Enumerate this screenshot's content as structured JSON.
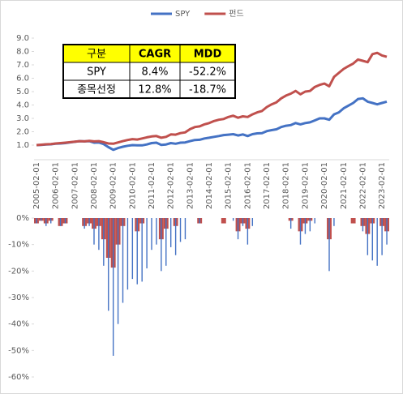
{
  "chart_data": [
    {
      "type": "line",
      "categories": [
        "2005-02-01",
        null,
        null,
        null,
        "2006-02-01",
        null,
        null,
        null,
        "2007-02-01",
        null,
        null,
        null,
        "2008-02-01",
        null,
        null,
        null,
        "2009-02-01",
        null,
        null,
        null,
        "2010-02-01",
        null,
        null,
        null,
        "2011-02-01",
        null,
        null,
        null,
        "2012-02-01",
        null,
        null,
        null,
        "2013-02-01",
        null,
        null,
        null,
        "2014-02-01",
        null,
        null,
        null,
        "2015-02-01",
        null,
        null,
        null,
        "2016-02-01",
        null,
        null,
        null,
        "2017-02-01",
        null,
        null,
        null,
        "2018-02-01",
        null,
        null,
        null,
        "2019-02-01",
        null,
        null,
        null,
        "2020-02-01",
        null,
        null,
        null,
        "2021-02-01",
        null,
        null,
        null,
        "2022-02-01",
        null,
        null,
        null,
        "2023-02-01",
        null
      ],
      "series": [
        {
          "name": "SPY",
          "color": "#4472c4",
          "values": [
            1.0,
            1.02,
            1.05,
            1.06,
            1.1,
            1.12,
            1.15,
            1.2,
            1.25,
            1.3,
            1.28,
            1.3,
            1.18,
            1.2,
            1.08,
            0.85,
            0.65,
            0.78,
            0.88,
            0.95,
            1.0,
            0.98,
            0.98,
            1.05,
            1.15,
            1.18,
            1.02,
            1.05,
            1.15,
            1.1,
            1.18,
            1.2,
            1.3,
            1.38,
            1.4,
            1.5,
            1.55,
            1.62,
            1.68,
            1.75,
            1.78,
            1.82,
            1.72,
            1.8,
            1.68,
            1.82,
            1.88,
            1.9,
            2.05,
            2.12,
            2.18,
            2.35,
            2.45,
            2.5,
            2.65,
            2.55,
            2.65,
            2.7,
            2.85,
            3.0,
            3.0,
            2.9,
            3.3,
            3.45,
            3.75,
            3.95,
            4.15,
            4.45,
            4.5,
            4.25,
            4.15,
            4.05,
            4.15,
            4.25
          ]
        },
        {
          "name": "펀드",
          "color": "#c0504d",
          "values": [
            1.0,
            1.03,
            1.06,
            1.08,
            1.12,
            1.15,
            1.18,
            1.22,
            1.26,
            1.3,
            1.28,
            1.32,
            1.28,
            1.3,
            1.22,
            1.12,
            1.1,
            1.2,
            1.3,
            1.38,
            1.45,
            1.42,
            1.5,
            1.58,
            1.65,
            1.68,
            1.55,
            1.62,
            1.8,
            1.78,
            1.9,
            1.95,
            2.2,
            2.35,
            2.4,
            2.55,
            2.65,
            2.8,
            2.9,
            2.95,
            3.1,
            3.2,
            3.05,
            3.15,
            3.1,
            3.3,
            3.45,
            3.55,
            3.85,
            4.05,
            4.2,
            4.5,
            4.7,
            4.85,
            5.05,
            4.8,
            5.0,
            5.05,
            5.35,
            5.5,
            5.6,
            5.4,
            6.1,
            6.4,
            6.7,
            6.9,
            7.1,
            7.4,
            7.3,
            7.2,
            7.8,
            7.9,
            7.7,
            7.6
          ]
        }
      ],
      "ylim": [
        0,
        9
      ],
      "yticks": [
        {
          "value": 1,
          "label": "1.0"
        },
        {
          "value": 2,
          "label": "2.0"
        },
        {
          "value": 3,
          "label": "3.0"
        },
        {
          "value": 4,
          "label": "4.0"
        },
        {
          "value": 5,
          "label": "5.0"
        },
        {
          "value": 6,
          "label": "6.0"
        },
        {
          "value": 7,
          "label": "7.0"
        },
        {
          "value": 8,
          "label": "8.0"
        },
        {
          "value": 9,
          "label": "9.0"
        }
      ],
      "legend": "top",
      "table": {
        "header": [
          "구분",
          "CAGR",
          "MDD"
        ],
        "rows": [
          [
            "SPY",
            "8.4%",
            "-52.2%"
          ],
          [
            "종목선정",
            "12.8%",
            "-18.7%"
          ]
        ]
      }
    },
    {
      "type": "bar",
      "categories": [
        null,
        null,
        null,
        null,
        null,
        null,
        null,
        null,
        null,
        null,
        null,
        null,
        null,
        null,
        null,
        null,
        null,
        null,
        null,
        null,
        null,
        null,
        null,
        null,
        null,
        null,
        null,
        null,
        null,
        null,
        null,
        null,
        null,
        null,
        null,
        null,
        null,
        null,
        null,
        null,
        null,
        null,
        null,
        null,
        null,
        null,
        null,
        null,
        null,
        null,
        null,
        null,
        null,
        null,
        null,
        null,
        null,
        null,
        null,
        null,
        null,
        null,
        null,
        null,
        null,
        null,
        null,
        null,
        null,
        null,
        null,
        null,
        null,
        null
      ],
      "series": [
        {
          "name": "펀드",
          "color": "#c0504d",
          "values": [
            -2,
            -1,
            -2,
            -1,
            0,
            -3,
            -2,
            0,
            0,
            0,
            -3,
            -2,
            -4,
            -3,
            -8,
            -15,
            -18.7,
            -10,
            -3,
            0,
            0,
            -5,
            -2,
            0,
            0,
            0,
            -8,
            -4,
            0,
            -3,
            0,
            0,
            0,
            0,
            -2,
            0,
            0,
            0,
            0,
            -2,
            0,
            0,
            -5,
            -2,
            -4,
            0,
            0,
            0,
            0,
            0,
            0,
            0,
            0,
            -1,
            0,
            -5,
            -2,
            -1,
            0,
            0,
            0,
            -8,
            0,
            0,
            0,
            0,
            -2,
            0,
            -3,
            -6,
            -2,
            0,
            -3,
            -5
          ]
        },
        {
          "name": "SPY",
          "color": "#4472c4",
          "values": [
            -2,
            -1,
            -3,
            -2,
            0,
            -3,
            -2,
            0,
            0,
            0,
            -4,
            -3,
            -10,
            -12,
            -18,
            -35,
            -52,
            -40,
            -32,
            -27,
            -23,
            -25,
            -24,
            -19,
            -12,
            -10,
            -20,
            -18,
            -11,
            -14,
            -9,
            -8,
            0,
            0,
            -2,
            0,
            0,
            0,
            0,
            0,
            0,
            -1,
            -8,
            -3,
            -10,
            -3,
            0,
            0,
            0,
            0,
            0,
            0,
            0,
            -4,
            0,
            -10,
            -6,
            -5,
            -2,
            0,
            0,
            -20,
            -3,
            0,
            0,
            0,
            0,
            0,
            -5,
            -14,
            -16,
            -18,
            -14,
            -10
          ]
        }
      ],
      "ylim": [
        -60,
        0
      ],
      "yticks": [
        {
          "value": 0,
          "label": "0%"
        },
        {
          "value": -10,
          "label": "-10%"
        },
        {
          "value": -20,
          "label": "-20%"
        },
        {
          "value": -30,
          "label": "-30%"
        },
        {
          "value": -40,
          "label": "-40%"
        },
        {
          "value": -50,
          "label": "-50%"
        },
        {
          "value": -60,
          "label": "-60%"
        }
      ]
    }
  ]
}
